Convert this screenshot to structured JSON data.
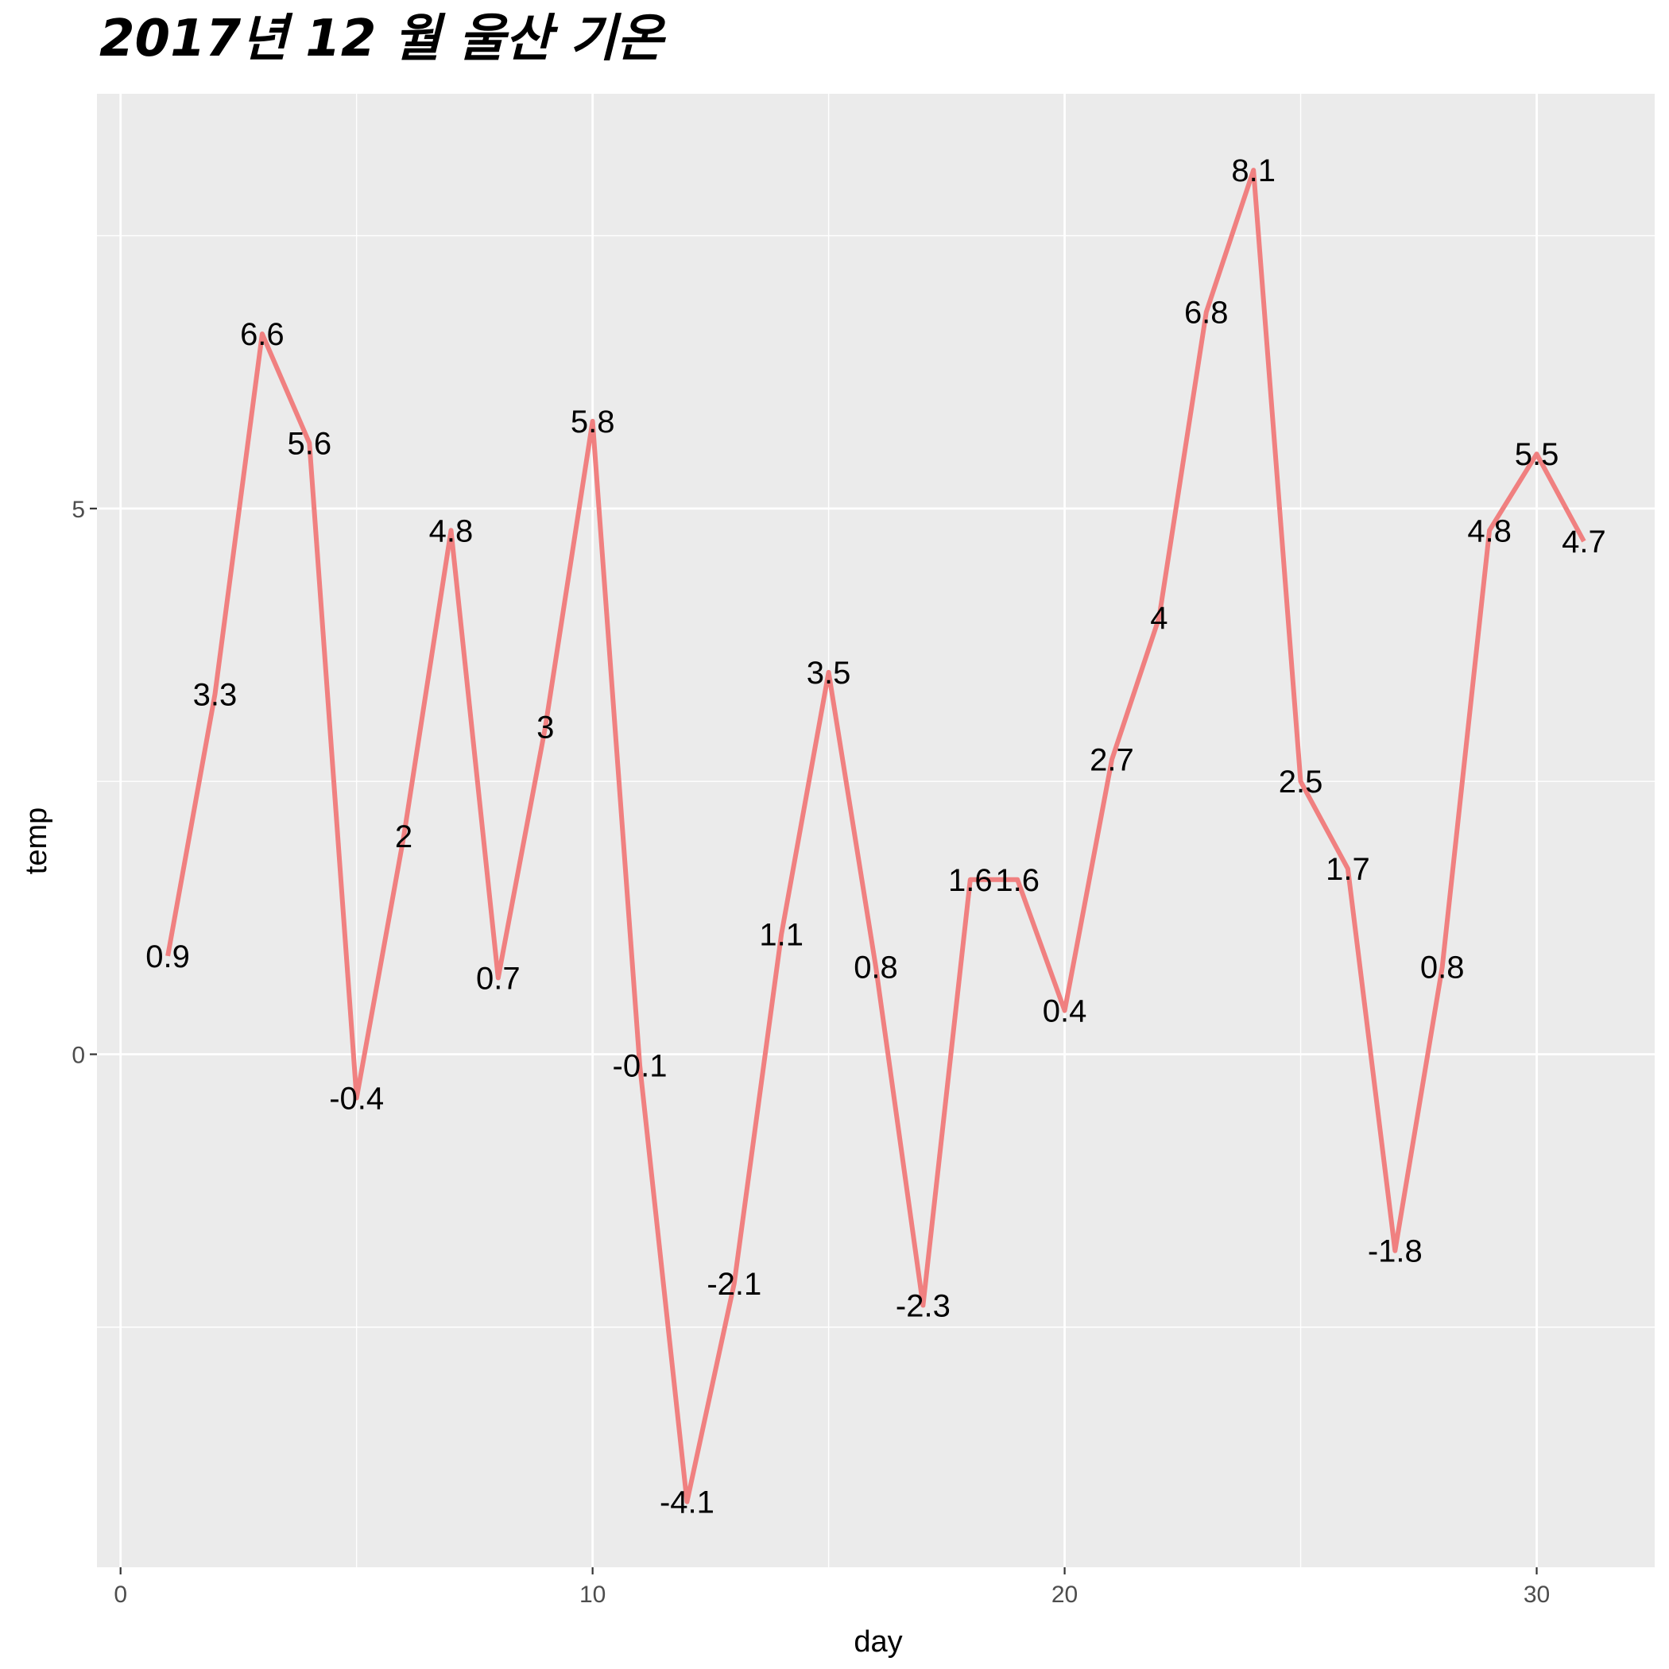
{
  "chart_data": {
    "type": "line",
    "title": "2017년 12 월 울산 기온",
    "xlabel": "day",
    "ylabel": "temp",
    "xlim": [
      -0.5,
      32.5
    ],
    "ylim": [
      -4.7,
      8.8
    ],
    "x_ticks": [
      0,
      10,
      20,
      30
    ],
    "x_tick_labels": [
      "0",
      "10",
      "20",
      "30"
    ],
    "x_minor_ticks": [
      5,
      15,
      25
    ],
    "y_ticks": [
      0,
      5
    ],
    "y_tick_labels": [
      "0",
      "5"
    ],
    "y_minor_ticks": [
      -2.5,
      2.5,
      7.5
    ],
    "panel_background": "#EBEBEB",
    "grid_color": "#FFFFFF",
    "line_color": "#F08080",
    "series": [
      {
        "x": [
          1,
          2,
          3,
          4,
          5,
          6,
          7,
          8,
          9,
          10,
          11,
          12,
          13,
          14,
          15,
          16,
          17,
          18,
          19,
          20,
          21,
          22,
          23,
          24,
          25,
          26,
          27,
          28,
          29,
          30,
          31
        ],
        "values": [
          0.9,
          3.3,
          6.6,
          5.6,
          -0.4,
          2,
          4.8,
          0.7,
          3,
          5.8,
          -0.1,
          -4.1,
          -2.1,
          1.1,
          3.5,
          0.8,
          -2.3,
          1.6,
          1.6,
          0.4,
          2.7,
          4,
          6.8,
          8.1,
          2.5,
          1.7,
          -1.8,
          0.8,
          4.8,
          5.5,
          4.7
        ],
        "labels": [
          "0.9",
          "3.3",
          "6.6",
          "5.6",
          "-0.4",
          "2",
          "4.8",
          "0.7",
          "3",
          "5.8",
          "-0.1",
          "-4.1",
          "-2.1",
          "1.1",
          "3.5",
          "0.8",
          "-2.3",
          "1.6",
          "1.6",
          "0.4",
          "2.7",
          "4",
          "6.8",
          "8.1",
          "2.5",
          "1.7",
          "-1.8",
          "0.8",
          "4.8",
          "5.5",
          "4.7"
        ]
      }
    ]
  }
}
